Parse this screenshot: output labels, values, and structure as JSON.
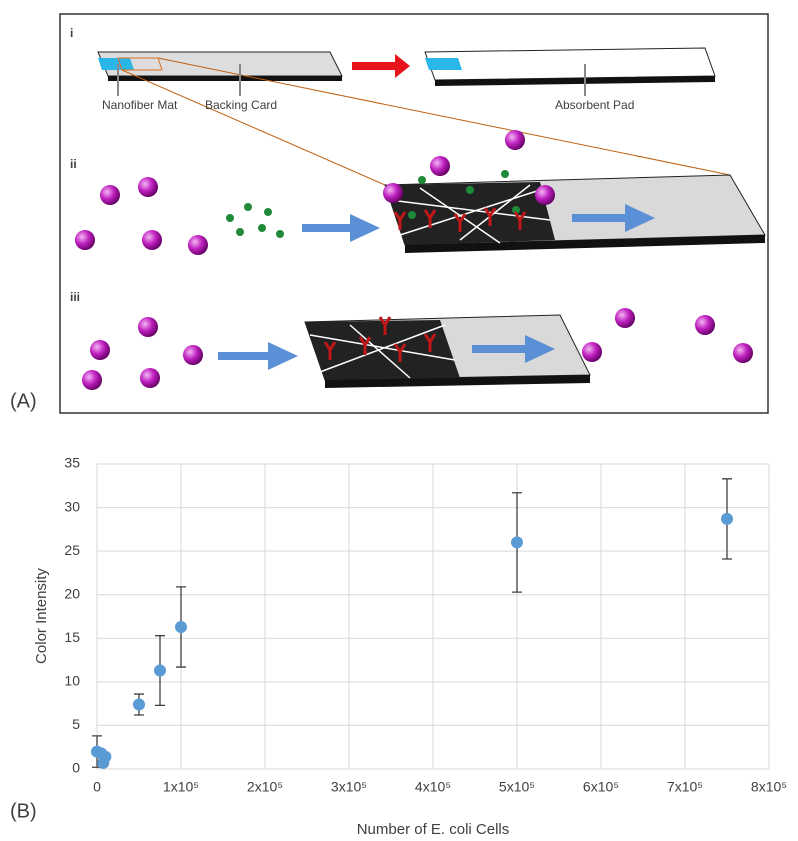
{
  "diagram": {
    "panel_label": "(A)",
    "step_1": "i",
    "step_2": "ii",
    "step_3": "iii",
    "labels": [
      "Nanofiber Mat",
      "Backing Card",
      "Absorbent Pad"
    ]
  },
  "chart_data": {
    "type": "scatter",
    "panel_label": "(B)",
    "xlabel": "Number of E. coli Cells",
    "ylabel": "Color Intensity",
    "x": [
      0,
      5000,
      7500,
      10000,
      50000,
      75000,
      100000,
      500000,
      750000
    ],
    "series": [
      {
        "name": "Color Intensity",
        "color": "#5b9bd5",
        "values": [
          2.0,
          1.8,
          0.7,
          1.4,
          7.4,
          11.3,
          16.3,
          26.0,
          28.7
        ],
        "errors": [
          1.8,
          null,
          null,
          null,
          1.2,
          4.0,
          4.6,
          5.7,
          4.6
        ]
      }
    ],
    "xlim": [
      0,
      800000
    ],
    "xticks": [
      0,
      {
        "value": 100000,
        "label": "1x10⁵"
      },
      {
        "value": 200000,
        "label": "2x10⁵"
      },
      {
        "value": 300000,
        "label": "3x10⁵"
      },
      {
        "value": 400000,
        "label": "4x10⁵"
      },
      {
        "value": 500000,
        "label": "5x10⁵"
      },
      {
        "value": 600000,
        "label": "6x10⁵"
      },
      {
        "value": 700000,
        "label": "7x10⁵"
      },
      {
        "value": 800000,
        "label": "8x10⁵"
      }
    ],
    "ylim": [
      0,
      35
    ],
    "yticks": [
      0,
      5,
      10,
      15,
      20,
      25,
      30,
      35
    ],
    "grid": true
  }
}
